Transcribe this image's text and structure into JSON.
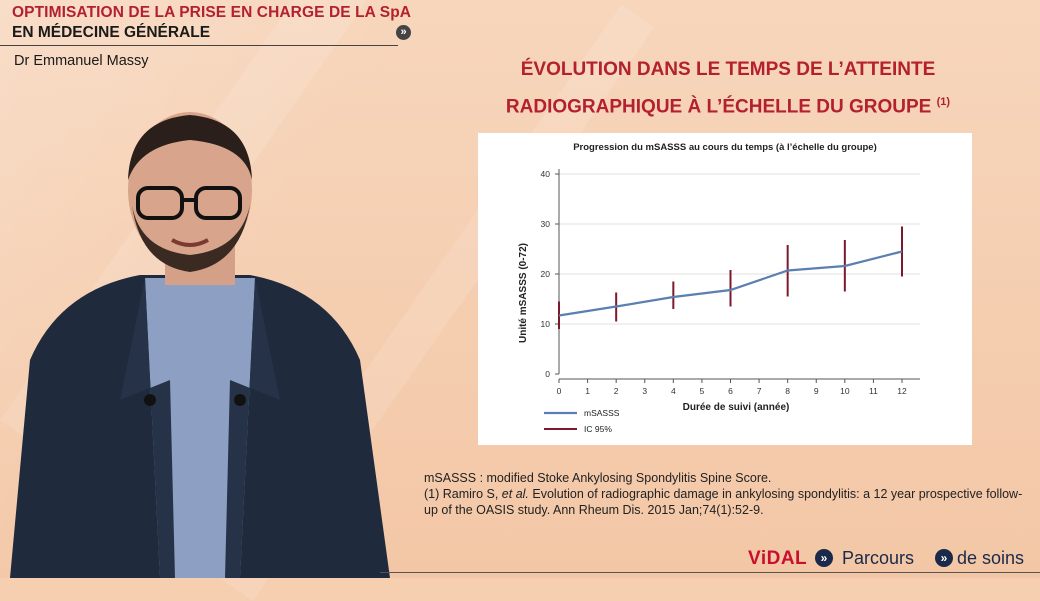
{
  "header": {
    "line1": "OPTIMISATION DE LA PRISE EN CHARGE DE LA SpA",
    "line2": "EN MÉDECINE GÉNÉRALE",
    "presenter": "Dr Emmanuel Massy"
  },
  "slide": {
    "title_line1": "ÉVOLUTION DANS LE TEMPS DE L’ATTEINTE",
    "title_line2": "RADIOGRAPHIQUE À L’ÉCHELLE DU GROUPE",
    "title_ref": "(1)"
  },
  "chart_data": {
    "type": "line",
    "title": "Progression du mSASSS au cours du temps (à l’échelle du groupe)",
    "xlabel": "Durée de suivi (année)",
    "ylabel": "Unité mSASSS (0-72)",
    "xlim": [
      0,
      12
    ],
    "ylim": [
      0,
      40
    ],
    "x_ticks": [
      0,
      1,
      2,
      3,
      4,
      5,
      6,
      7,
      8,
      9,
      10,
      11,
      12
    ],
    "y_ticks": [
      0,
      10,
      20,
      30,
      40
    ],
    "grid": "horizontal",
    "legend_position": "bottom-left",
    "series": [
      {
        "name": "mSASSS",
        "color": "#5a7fb0",
        "x": [
          0,
          2,
          4,
          6,
          8,
          10,
          12
        ],
        "y": [
          11.7,
          13.5,
          15.4,
          16.8,
          20.7,
          21.6,
          24.5
        ]
      }
    ],
    "error_bars": {
      "name": "IC 95%",
      "color": "#7a1a2a",
      "x": [
        0,
        2,
        4,
        6,
        8,
        10,
        12
      ],
      "low": [
        9.0,
        10.5,
        13.0,
        13.5,
        15.5,
        16.5,
        19.5
      ],
      "high": [
        14.5,
        16.3,
        18.5,
        20.8,
        25.8,
        26.8,
        29.5
      ]
    }
  },
  "footnotes": {
    "definition": "mSASSS : modified Stoke Ankylosing Spondylitis Spine Score.",
    "ref_prefix": "(1) Ramiro S, ",
    "ref_etal": "et al.",
    "ref_rest": " Evolution of radiographic damage in ankylosing spondylitis: a 12 year prospective follow-up of the OASIS study. Ann Rheum Dis. 2015 Jan;74(1):52-9."
  },
  "footer": {
    "brand": "ViDAL",
    "parcours": "Parcours",
    "desoins": "de soins",
    "chevron": "»"
  },
  "colors": {
    "accent_red": "#b3202f",
    "navy": "#1b2a4a",
    "background": "#f6ceb0"
  }
}
